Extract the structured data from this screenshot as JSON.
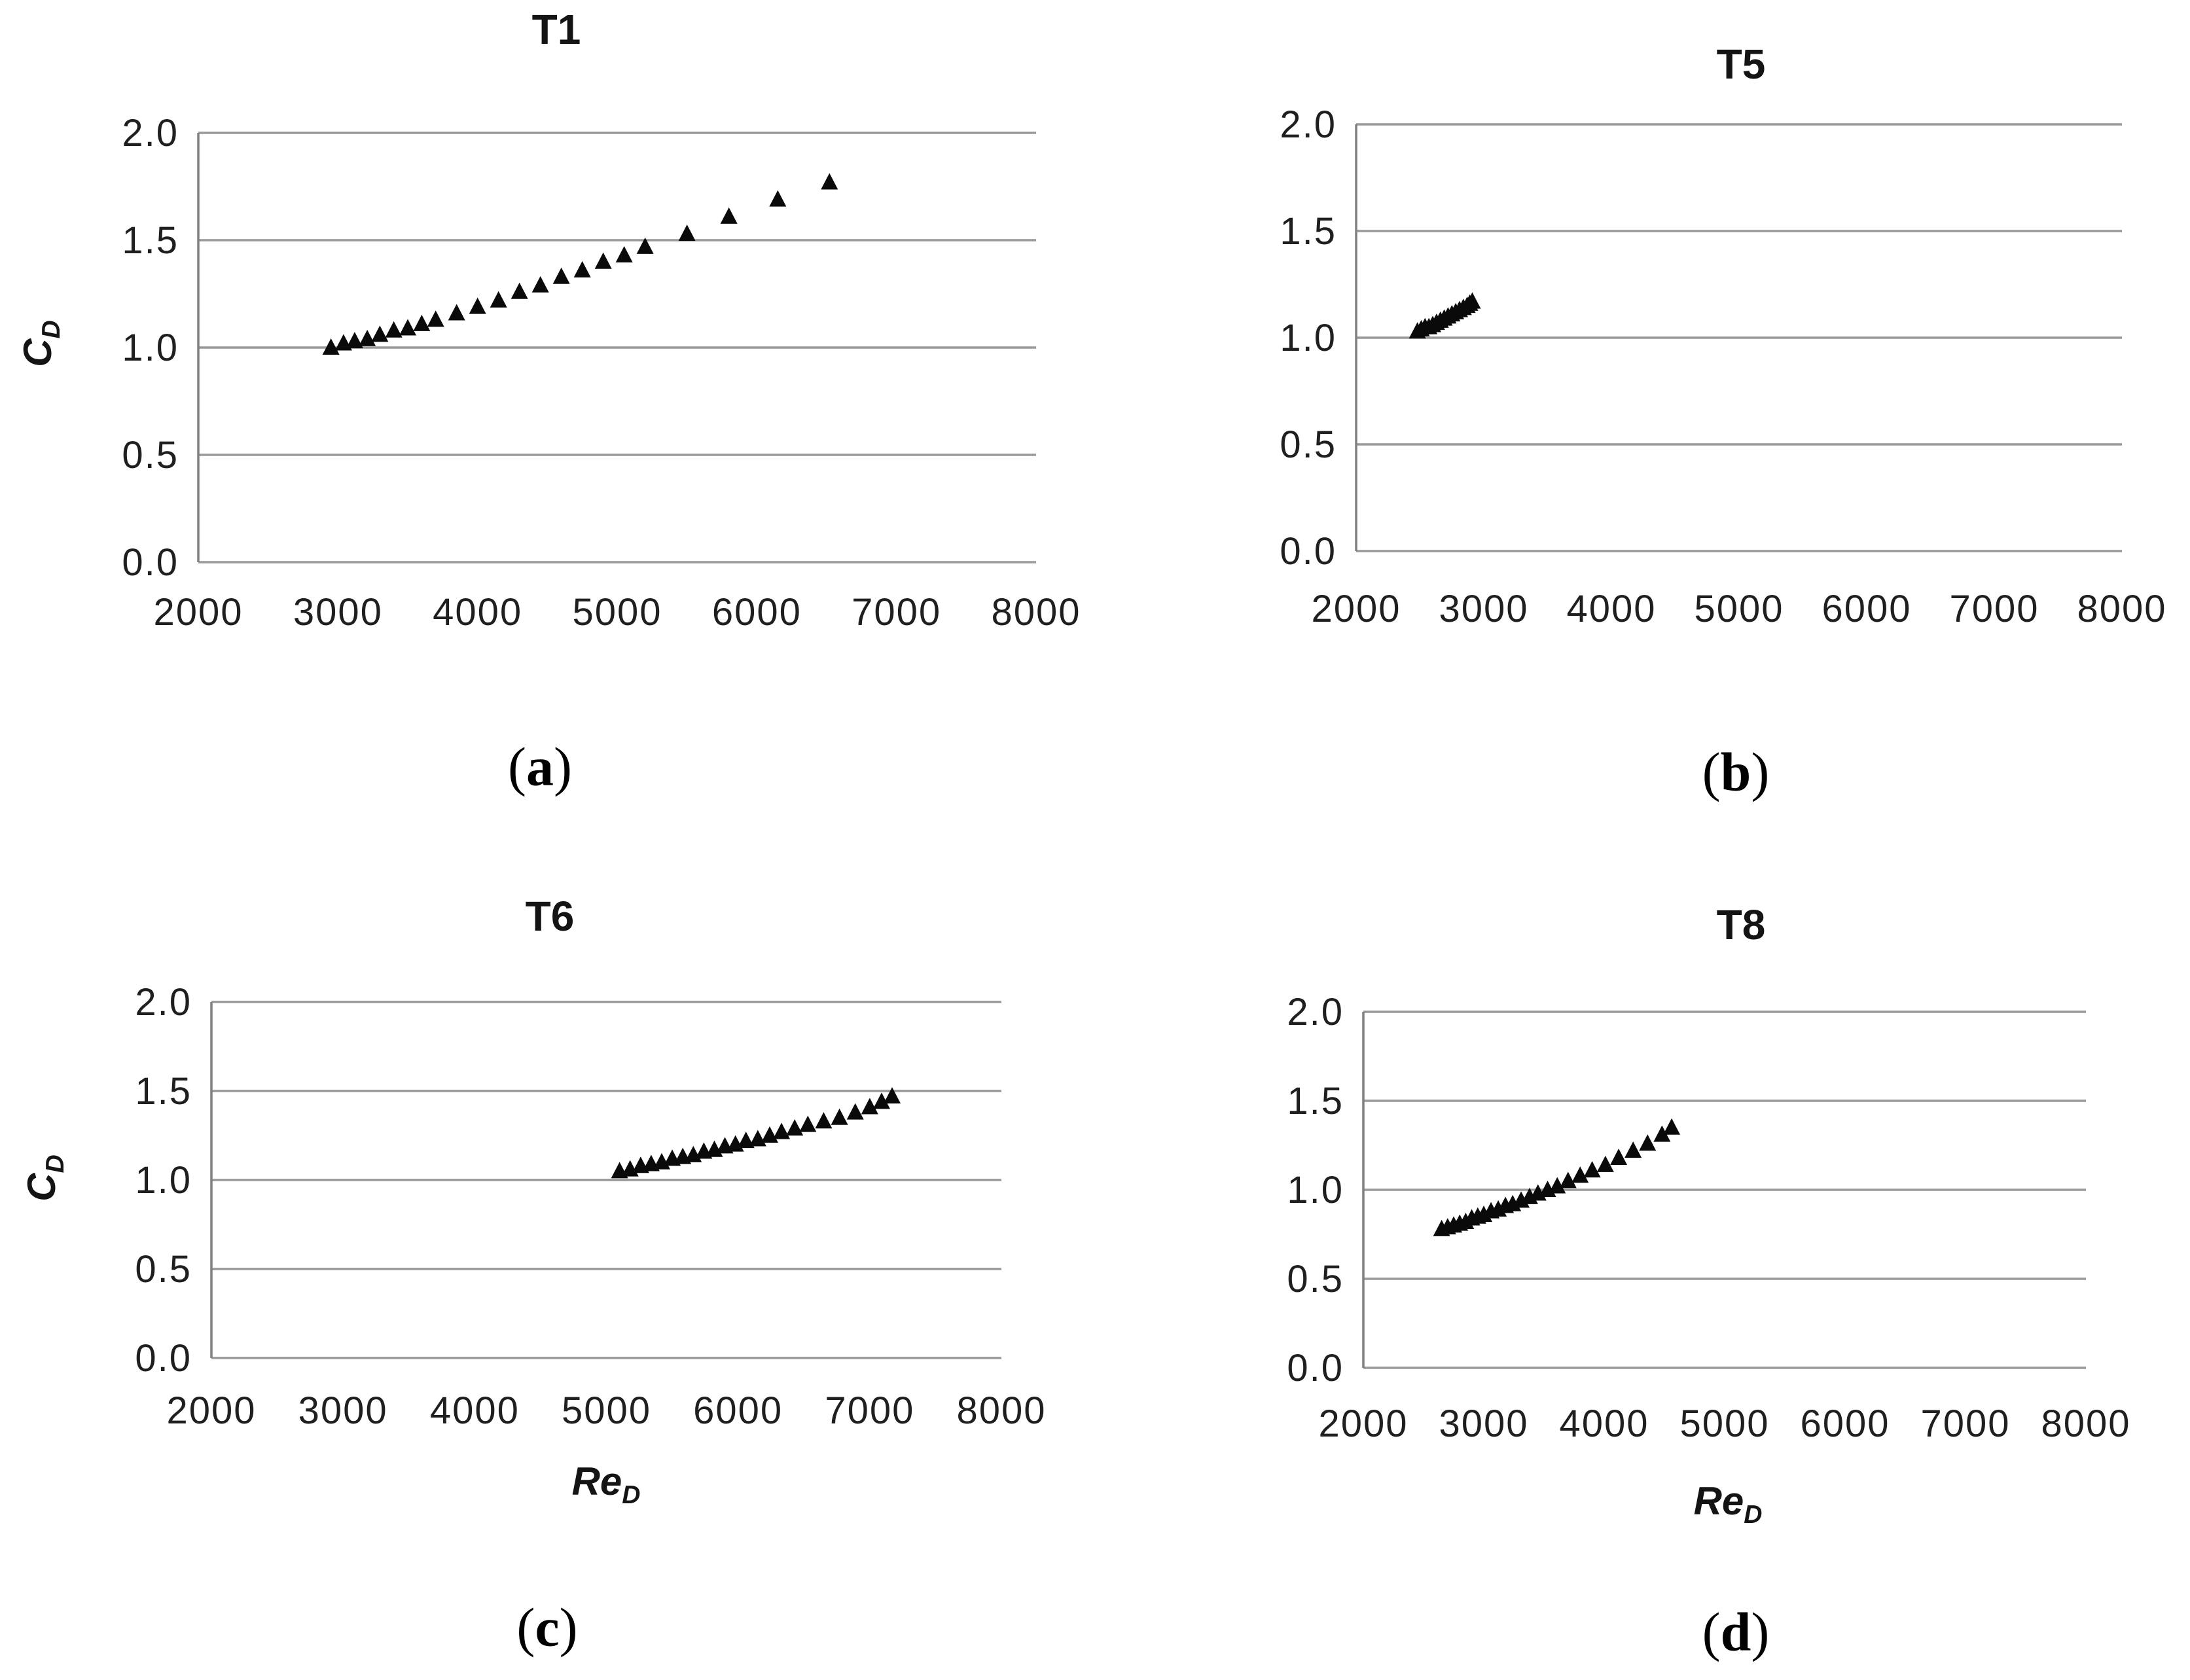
{
  "figure": {
    "background": "#ffffff",
    "text_color": "#1f1f1f",
    "gridline_color": "#999999",
    "axis_color": "#808080",
    "marker_color": "#0a0a0a",
    "marker_shape": "filled-triangle-up"
  },
  "chart_data": [
    {
      "id": "t1",
      "type": "scatter",
      "title": "T1",
      "ylabel": {
        "main": "C",
        "sub": "D"
      },
      "xlabel": null,
      "caption": {
        "open": "(",
        "letter": "a",
        "close": ")"
      },
      "xlim": [
        2000,
        8000
      ],
      "ylim": [
        0.0,
        2.0
      ],
      "xticks": [
        "2000",
        "3000",
        "4000",
        "5000",
        "6000",
        "7000",
        "8000"
      ],
      "yticks": [
        "2.0",
        "1.5",
        "1.0",
        "0.5",
        "0.0"
      ],
      "grid": "horizontal",
      "legend": "none",
      "points": [
        [
          2950,
          1.0
        ],
        [
          3040,
          1.02
        ],
        [
          3120,
          1.03
        ],
        [
          3210,
          1.04
        ],
        [
          3300,
          1.06
        ],
        [
          3400,
          1.08
        ],
        [
          3500,
          1.09
        ],
        [
          3600,
          1.11
        ],
        [
          3700,
          1.13
        ],
        [
          3850,
          1.16
        ],
        [
          4000,
          1.19
        ],
        [
          4150,
          1.22
        ],
        [
          4300,
          1.26
        ],
        [
          4450,
          1.29
        ],
        [
          4600,
          1.33
        ],
        [
          4750,
          1.36
        ],
        [
          4900,
          1.4
        ],
        [
          5050,
          1.43
        ],
        [
          5200,
          1.47
        ],
        [
          5500,
          1.53
        ],
        [
          5800,
          1.61
        ],
        [
          6150,
          1.69
        ],
        [
          6520,
          1.77
        ]
      ]
    },
    {
      "id": "t5",
      "type": "scatter",
      "title": "T5",
      "ylabel": null,
      "xlabel": null,
      "caption": {
        "open": "(",
        "letter": "b",
        "close": ")"
      },
      "xlim": [
        2000,
        8000
      ],
      "ylim": [
        0.0,
        2.0
      ],
      "xticks": [
        "2000",
        "3000",
        "4000",
        "5000",
        "6000",
        "7000",
        "8000"
      ],
      "yticks": [
        "2.0",
        "1.5",
        "1.0",
        "0.5",
        "0.0"
      ],
      "grid": "horizontal",
      "legend": "none",
      "points": [
        [
          2480,
          1.03
        ],
        [
          2510,
          1.04
        ],
        [
          2540,
          1.05
        ],
        [
          2570,
          1.05
        ],
        [
          2600,
          1.06
        ],
        [
          2630,
          1.07
        ],
        [
          2660,
          1.08
        ],
        [
          2690,
          1.09
        ],
        [
          2720,
          1.1
        ],
        [
          2750,
          1.11
        ],
        [
          2780,
          1.12
        ],
        [
          2810,
          1.13
        ],
        [
          2840,
          1.14
        ],
        [
          2870,
          1.15
        ],
        [
          2890,
          1.16
        ],
        [
          2910,
          1.17
        ]
      ]
    },
    {
      "id": "t6",
      "type": "scatter",
      "title": "T6",
      "ylabel": {
        "main": "C",
        "sub": "D"
      },
      "xlabel": {
        "main": "Re",
        "sub": "D"
      },
      "caption": {
        "open": "(",
        "letter": "c",
        "close": ")"
      },
      "xlim": [
        2000,
        8000
      ],
      "ylim": [
        0.0,
        2.0
      ],
      "xticks": [
        "2000",
        "3000",
        "4000",
        "5000",
        "6000",
        "7000",
        "8000"
      ],
      "yticks": [
        "2.0",
        "1.5",
        "1.0",
        "0.5",
        "0.0"
      ],
      "grid": "horizontal",
      "legend": "none",
      "points": [
        [
          5100,
          1.05
        ],
        [
          5180,
          1.06
        ],
        [
          5260,
          1.08
        ],
        [
          5340,
          1.09
        ],
        [
          5420,
          1.1
        ],
        [
          5500,
          1.12
        ],
        [
          5580,
          1.13
        ],
        [
          5660,
          1.14
        ],
        [
          5740,
          1.16
        ],
        [
          5820,
          1.17
        ],
        [
          5900,
          1.19
        ],
        [
          5980,
          1.2
        ],
        [
          6060,
          1.22
        ],
        [
          6150,
          1.23
        ],
        [
          6240,
          1.25
        ],
        [
          6330,
          1.27
        ],
        [
          6430,
          1.29
        ],
        [
          6530,
          1.31
        ],
        [
          6650,
          1.33
        ],
        [
          6770,
          1.35
        ],
        [
          6890,
          1.38
        ],
        [
          7000,
          1.41
        ],
        [
          7090,
          1.44
        ],
        [
          7170,
          1.47
        ]
      ]
    },
    {
      "id": "t8",
      "type": "scatter",
      "title": "T8",
      "ylabel": null,
      "xlabel": {
        "main": "Re",
        "sub": "D"
      },
      "caption": {
        "open": "(",
        "letter": "d",
        "close": ")"
      },
      "xlim": [
        2000,
        8000
      ],
      "ylim": [
        0.0,
        2.0
      ],
      "xticks": [
        "2000",
        "3000",
        "4000",
        "5000",
        "6000",
        "7000",
        "8000"
      ],
      "yticks": [
        "2.0",
        "1.5",
        "1.0",
        "0.5",
        "0.0"
      ],
      "grid": "horizontal",
      "legend": "none",
      "points": [
        [
          2650,
          0.78
        ],
        [
          2700,
          0.79
        ],
        [
          2750,
          0.8
        ],
        [
          2800,
          0.81
        ],
        [
          2850,
          0.82
        ],
        [
          2900,
          0.84
        ],
        [
          2950,
          0.85
        ],
        [
          3000,
          0.86
        ],
        [
          3060,
          0.88
        ],
        [
          3120,
          0.89
        ],
        [
          3180,
          0.91
        ],
        [
          3240,
          0.92
        ],
        [
          3310,
          0.94
        ],
        [
          3380,
          0.96
        ],
        [
          3450,
          0.98
        ],
        [
          3530,
          1.0
        ],
        [
          3610,
          1.02
        ],
        [
          3700,
          1.05
        ],
        [
          3800,
          1.08
        ],
        [
          3900,
          1.11
        ],
        [
          4010,
          1.14
        ],
        [
          4120,
          1.18
        ],
        [
          4240,
          1.22
        ],
        [
          4360,
          1.26
        ],
        [
          4480,
          1.31
        ],
        [
          4560,
          1.35
        ]
      ]
    }
  ]
}
